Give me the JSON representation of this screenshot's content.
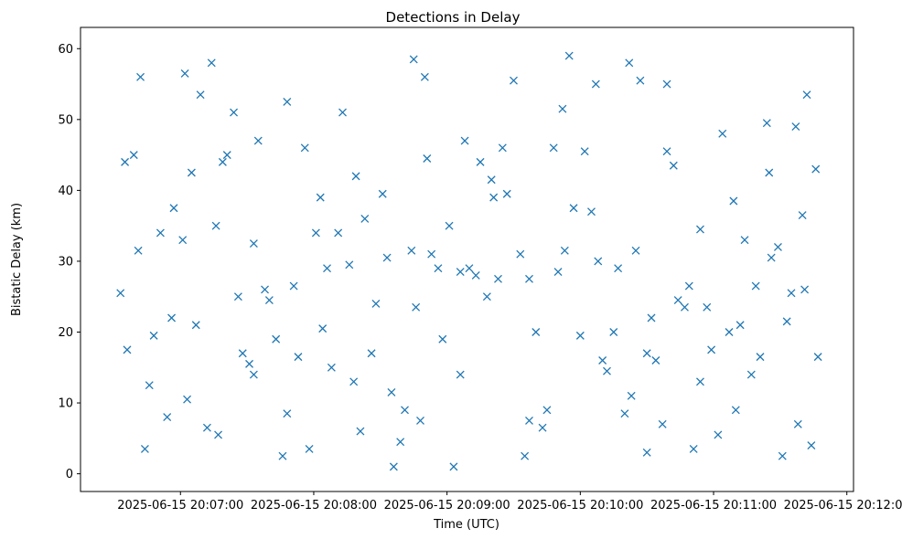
{
  "chart_data": {
    "type": "scatter",
    "title": "Detections in Delay",
    "xlabel": "Time (UTC)",
    "ylabel": "Bistatic Delay (km)",
    "x_ticks": [
      "2025-06-15 20:07:00",
      "2025-06-15 20:08:00",
      "2025-06-15 20:09:00",
      "2025-06-15 20:10:00",
      "2025-06-15 20:11:00",
      "2025-06-15 20:12:00"
    ],
    "y_ticks": [
      "0",
      "10",
      "20",
      "30",
      "40",
      "50",
      "60"
    ],
    "xlim": [
      "2025-06-15 20:06:15",
      "2025-06-15 20:12:03"
    ],
    "ylim": [
      -2.5,
      63.0
    ],
    "grid": false,
    "marker": "x",
    "color": "#1f77b4",
    "series": [
      {
        "points": [
          [
            "2025-06-15 20:06:33",
            25.5
          ],
          [
            "2025-06-15 20:06:36",
            17.5
          ],
          [
            "2025-06-15 20:06:39",
            45.0
          ],
          [
            "2025-06-15 20:06:41",
            31.5
          ],
          [
            "2025-06-15 20:06:42",
            56.0
          ],
          [
            "2025-06-15 20:06:44",
            3.5
          ],
          [
            "2025-06-15 20:06:48",
            19.5
          ],
          [
            "2025-06-15 20:06:51",
            34.0
          ],
          [
            "2025-06-15 20:06:54",
            8.0
          ],
          [
            "2025-06-15 20:06:57",
            37.5
          ],
          [
            "2025-06-15 20:07:01",
            33.0
          ],
          [
            "2025-06-15 20:07:03",
            10.5
          ],
          [
            "2025-06-15 20:07:05",
            42.5
          ],
          [
            "2025-06-15 20:07:07",
            21.0
          ],
          [
            "2025-06-15 20:07:09",
            53.5
          ],
          [
            "2025-06-15 20:07:12",
            6.5
          ],
          [
            "2025-06-15 20:07:14",
            58.0
          ],
          [
            "2025-06-15 20:07:16",
            35.0
          ],
          [
            "2025-06-15 20:07:19",
            44.0
          ],
          [
            "2025-06-15 20:07:21",
            45.0
          ],
          [
            "2025-06-15 20:07:24",
            51.0
          ],
          [
            "2025-06-15 20:07:26",
            25.0
          ],
          [
            "2025-06-15 20:07:28",
            17.0
          ],
          [
            "2025-06-15 20:07:31",
            15.5
          ],
          [
            "2025-06-15 20:07:33",
            14.0
          ],
          [
            "2025-06-15 20:07:35",
            47.0
          ],
          [
            "2025-06-15 20:07:38",
            26.0
          ],
          [
            "2025-06-15 20:07:40",
            24.5
          ],
          [
            "2025-06-15 20:07:43",
            19.0
          ],
          [
            "2025-06-15 20:07:46",
            2.5
          ],
          [
            "2025-06-15 20:07:48",
            8.5
          ],
          [
            "2025-06-15 20:07:51",
            26.5
          ],
          [
            "2025-06-15 20:07:53",
            16.5
          ],
          [
            "2025-06-15 20:07:56",
            46.0
          ],
          [
            "2025-06-15 20:07:58",
            3.5
          ],
          [
            "2025-06-15 20:08:01",
            34.0
          ],
          [
            "2025-06-15 20:08:03",
            39.0
          ],
          [
            "2025-06-15 20:08:06",
            29.0
          ],
          [
            "2025-06-15 20:08:08",
            15.0
          ],
          [
            "2025-06-15 20:08:11",
            34.0
          ],
          [
            "2025-06-15 20:08:13",
            51.0
          ],
          [
            "2025-06-15 20:08:16",
            29.5
          ],
          [
            "2025-06-15 20:08:18",
            13.0
          ],
          [
            "2025-06-15 20:08:21",
            6.0
          ],
          [
            "2025-06-15 20:08:23",
            36.0
          ],
          [
            "2025-06-15 20:08:26",
            17.0
          ],
          [
            "2025-06-15 20:08:28",
            24.0
          ],
          [
            "2025-06-15 20:08:31",
            39.5
          ],
          [
            "2025-06-15 20:08:33",
            30.5
          ],
          [
            "2025-06-15 20:08:36",
            1.0
          ],
          [
            "2025-06-15 20:08:39",
            4.5
          ],
          [
            "2025-06-15 20:08:41",
            9.0
          ],
          [
            "2025-06-15 20:08:44",
            31.5
          ],
          [
            "2025-06-15 20:08:46",
            23.5
          ],
          [
            "2025-06-15 20:08:48",
            7.5
          ],
          [
            "2025-06-15 20:08:51",
            44.5
          ],
          [
            "2025-06-15 20:08:53",
            31.0
          ],
          [
            "2025-06-15 20:08:56",
            29.0
          ],
          [
            "2025-06-15 20:08:58",
            19.0
          ],
          [
            "2025-06-15 20:09:01",
            35.0
          ],
          [
            "2025-06-15 20:09:03",
            1.0
          ],
          [
            "2025-06-15 20:09:06",
            28.5
          ],
          [
            "2025-06-15 20:09:08",
            47.0
          ],
          [
            "2025-06-15 20:09:10",
            29.0
          ],
          [
            "2025-06-15 20:09:13",
            28.0
          ],
          [
            "2025-06-15 20:09:15",
            44.0
          ],
          [
            "2025-06-15 20:09:18",
            25.0
          ],
          [
            "2025-06-15 20:09:20",
            41.5
          ],
          [
            "2025-06-15 20:09:23",
            27.5
          ],
          [
            "2025-06-15 20:09:25",
            46.0
          ],
          [
            "2025-06-15 20:09:27",
            39.5
          ],
          [
            "2025-06-15 20:09:30",
            55.5
          ],
          [
            "2025-06-15 20:09:33",
            31.0
          ],
          [
            "2025-06-15 20:09:35",
            2.5
          ],
          [
            "2025-06-15 20:09:37",
            27.5
          ],
          [
            "2025-06-15 20:09:40",
            20.0
          ],
          [
            "2025-06-15 20:09:43",
            6.5
          ],
          [
            "2025-06-15 20:09:45",
            9.0
          ],
          [
            "2025-06-15 20:09:48",
            46.0
          ],
          [
            "2025-06-15 20:09:50",
            28.5
          ],
          [
            "2025-06-15 20:09:53",
            31.5
          ],
          [
            "2025-06-15 20:09:55",
            59.0
          ],
          [
            "2025-06-15 20:09:57",
            37.5
          ],
          [
            "2025-06-15 20:10:00",
            19.5
          ],
          [
            "2025-06-15 20:10:02",
            45.5
          ],
          [
            "2025-06-15 20:10:05",
            37.0
          ],
          [
            "2025-06-15 20:10:07",
            55.0
          ],
          [
            "2025-06-15 20:10:10",
            16.0
          ],
          [
            "2025-06-15 20:10:12",
            14.5
          ],
          [
            "2025-06-15 20:10:15",
            20.0
          ],
          [
            "2025-06-15 20:10:17",
            29.0
          ],
          [
            "2025-06-15 20:10:20",
            8.5
          ],
          [
            "2025-06-15 20:10:22",
            58.0
          ],
          [
            "2025-06-15 20:10:25",
            31.5
          ],
          [
            "2025-06-15 20:10:27",
            55.5
          ],
          [
            "2025-06-15 20:10:30",
            17.0
          ],
          [
            "2025-06-15 20:10:32",
            22.0
          ],
          [
            "2025-06-15 20:10:34",
            16.0
          ],
          [
            "2025-06-15 20:10:37",
            7.0
          ],
          [
            "2025-06-15 20:10:39",
            55.0
          ],
          [
            "2025-06-15 20:10:42",
            43.5
          ],
          [
            "2025-06-15 20:10:44",
            24.5
          ],
          [
            "2025-06-15 20:10:47",
            23.5
          ],
          [
            "2025-06-15 20:10:49",
            26.5
          ],
          [
            "2025-06-15 20:10:51",
            3.5
          ],
          [
            "2025-06-15 20:10:54",
            13.0
          ],
          [
            "2025-06-15 20:10:57",
            23.5
          ],
          [
            "2025-06-15 20:10:59",
            17.5
          ],
          [
            "2025-06-15 20:11:02",
            5.5
          ],
          [
            "2025-06-15 20:11:04",
            48.0
          ],
          [
            "2025-06-15 20:11:07",
            20.0
          ],
          [
            "2025-06-15 20:11:09",
            38.5
          ],
          [
            "2025-06-15 20:11:12",
            21.0
          ],
          [
            "2025-06-15 20:11:14",
            33.0
          ],
          [
            "2025-06-15 20:11:17",
            14.0
          ],
          [
            "2025-06-15 20:11:19",
            26.5
          ],
          [
            "2025-06-15 20:11:21",
            16.5
          ],
          [
            "2025-06-15 20:11:24",
            49.5
          ],
          [
            "2025-06-15 20:11:26",
            30.5
          ],
          [
            "2025-06-15 20:11:29",
            32.0
          ],
          [
            "2025-06-15 20:11:31",
            2.5
          ],
          [
            "2025-06-15 20:11:33",
            21.5
          ],
          [
            "2025-06-15 20:11:35",
            25.5
          ],
          [
            "2025-06-15 20:11:37",
            49.0
          ],
          [
            "2025-06-15 20:11:38",
            7.0
          ],
          [
            "2025-06-15 20:11:40",
            36.5
          ],
          [
            "2025-06-15 20:11:42",
            53.5
          ],
          [
            "2025-06-15 20:11:44",
            4.0
          ],
          [
            "2025-06-15 20:11:46",
            43.0
          ],
          [
            "2025-06-15 20:11:47",
            16.5
          ],
          [
            "2025-06-15 20:06:35",
            44.0
          ],
          [
            "2025-06-15 20:06:46",
            12.5
          ],
          [
            "2025-06-15 20:07:02",
            56.5
          ],
          [
            "2025-06-15 20:07:17",
            5.5
          ],
          [
            "2025-06-15 20:07:33",
            32.5
          ],
          [
            "2025-06-15 20:07:48",
            52.5
          ],
          [
            "2025-06-15 20:08:04",
            20.5
          ],
          [
            "2025-06-15 20:08:19",
            42.0
          ],
          [
            "2025-06-15 20:08:35",
            11.5
          ],
          [
            "2025-06-15 20:08:50",
            56.0
          ],
          [
            "2025-06-15 20:09:06",
            14.0
          ],
          [
            "2025-06-15 20:09:21",
            39.0
          ],
          [
            "2025-06-15 20:09:37",
            7.5
          ],
          [
            "2025-06-15 20:09:52",
            51.5
          ],
          [
            "2025-06-15 20:10:08",
            30.0
          ],
          [
            "2025-06-15 20:10:23",
            11.0
          ],
          [
            "2025-06-15 20:10:39",
            45.5
          ],
          [
            "2025-06-15 20:10:54",
            34.5
          ],
          [
            "2025-06-15 20:11:10",
            9.0
          ],
          [
            "2025-06-15 20:11:25",
            42.5
          ],
          [
            "2025-06-15 20:11:41",
            26.0
          ],
          [
            "2025-06-15 20:06:56",
            22.0
          ],
          [
            "2025-06-15 20:08:45",
            58.5
          ],
          [
            "2025-06-15 20:10:30",
            3.0
          ]
        ]
      }
    ]
  }
}
